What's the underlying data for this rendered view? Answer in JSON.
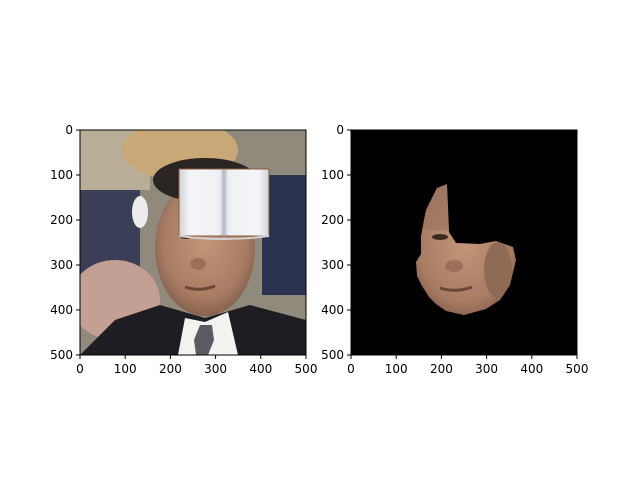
{
  "chart_data": [
    {
      "type": "image",
      "title": "",
      "xlabel": "",
      "ylabel": "",
      "xlim": [
        0,
        500
      ],
      "ylim": [
        500,
        0
      ],
      "x_ticks": [
        0,
        100,
        200,
        300,
        400,
        500
      ],
      "y_ticks": [
        0,
        100,
        200,
        300,
        400,
        500
      ],
      "x_tick_labels": [
        "0",
        "100",
        "200",
        "300",
        "400",
        "500"
      ],
      "y_tick_labels": [
        "0",
        "100",
        "200",
        "300",
        "400",
        "500"
      ],
      "content": "photo-with-occluder",
      "colors": {
        "background": "#8f8a7c",
        "occluder": "#eef0f3",
        "suit": "#1e1e22",
        "skin": "#b58a6e"
      }
    },
    {
      "type": "image",
      "title": "",
      "xlabel": "",
      "ylabel": "",
      "xlim": [
        0,
        500
      ],
      "ylim": [
        500,
        0
      ],
      "x_ticks": [
        0,
        100,
        200,
        300,
        400,
        500
      ],
      "y_ticks": [
        0,
        100,
        200,
        300,
        400,
        500
      ],
      "x_tick_labels": [
        "0",
        "100",
        "200",
        "300",
        "400",
        "500"
      ],
      "y_tick_labels": [
        "0",
        "100",
        "200",
        "300",
        "400",
        "500"
      ],
      "content": "masked-face-region",
      "colors": {
        "background": "#000000",
        "skin": "#b58a6e"
      }
    }
  ]
}
